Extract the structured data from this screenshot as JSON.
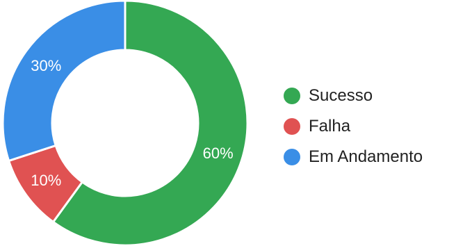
{
  "chart_data": {
    "type": "pie",
    "variant": "donut",
    "categories": [
      "Sucesso",
      "Falha",
      "Em Andamento"
    ],
    "values": [
      60,
      10,
      30
    ],
    "labels": [
      "60%",
      "10%",
      "30%"
    ],
    "colors": [
      "#34a853",
      "#e05252",
      "#3a8ee6"
    ],
    "start_angle_deg": 0,
    "direction": "clockwise",
    "legend_position": "right",
    "title": ""
  }
}
